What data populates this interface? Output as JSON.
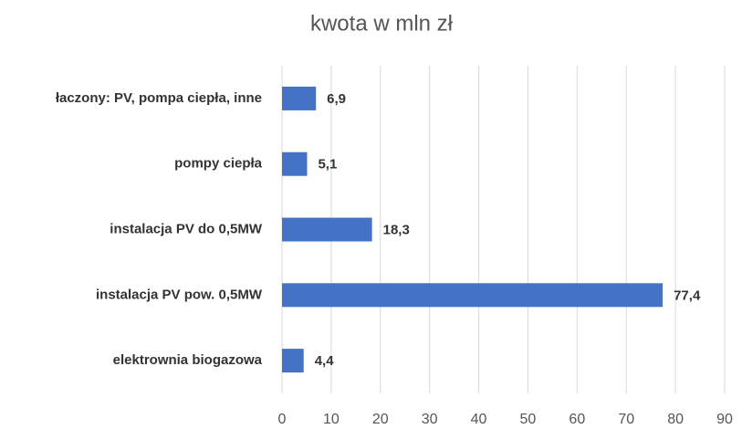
{
  "chart_data": {
    "type": "hbar",
    "title": "kwota w mln zł",
    "categories": [
      "łaczony: PV, pompa ciepła, inne",
      "pompy ciepła",
      "instalacja PV do 0,5MW",
      "instalacja PV pow. 0,5MW",
      "elektrownia biogazowa"
    ],
    "values": [
      6.9,
      5.1,
      18.3,
      77.4,
      4.4
    ],
    "value_labels": [
      "6,9",
      "5,1",
      "18,3",
      "77,4",
      "4,4"
    ],
    "color": "#4472c4",
    "xlim": [
      0,
      90
    ],
    "xticks": [
      0,
      10,
      20,
      30,
      40,
      50,
      60,
      70,
      80,
      90
    ],
    "grid": true
  }
}
